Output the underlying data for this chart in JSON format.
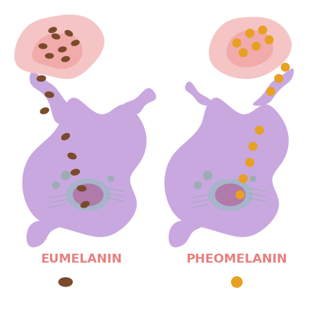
{
  "background_color": "#ffffff",
  "cell_color": "#c9a8e0",
  "cell_color2": "#c9a8e0",
  "nucleus_outer_color": "#a0b8c8",
  "nucleus_inner_color": "#b07aab",
  "skin_cell_color": "#f5c5c5",
  "skin_cell_inner_color": "#f0a0a0",
  "eumelanin_color": "#7a4a2a",
  "pheomelanin_color": "#e8a020",
  "label_color": "#e88080",
  "label_eumelanin": "EUMELANIN",
  "label_pheomelanin": "PHEOMELANIN",
  "organelle_color": "#8ab0a0",
  "title_fontsize": 13
}
